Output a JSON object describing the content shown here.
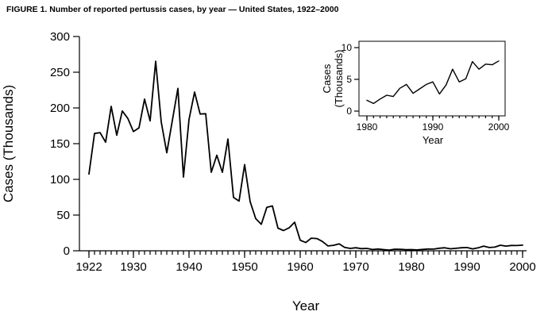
{
  "figure": {
    "title": "FIGURE 1. Number of reported pertussis cases, by year — United States, 1922–2000"
  },
  "chart_data": [
    {
      "type": "line",
      "name": "main",
      "title": "",
      "xlabel": "Year",
      "ylabel": "Cases (Thousands)",
      "xlim": [
        1922,
        2000
      ],
      "ylim": [
        0,
        300
      ],
      "y_ticks": [
        0,
        50,
        100,
        150,
        200,
        250,
        300
      ],
      "x_major_ticks": [
        1922,
        1930,
        1940,
        1950,
        1960,
        1970,
        1980,
        1990,
        2000
      ],
      "x_minor_tick_step": 1,
      "grid": false,
      "legend": false,
      "line_color": "#000000",
      "background": "#ffffff",
      "x": [
        1922,
        1923,
        1924,
        1925,
        1926,
        1927,
        1928,
        1929,
        1930,
        1931,
        1932,
        1933,
        1934,
        1935,
        1936,
        1937,
        1938,
        1939,
        1940,
        1941,
        1942,
        1943,
        1944,
        1945,
        1946,
        1947,
        1948,
        1949,
        1950,
        1951,
        1952,
        1953,
        1954,
        1955,
        1956,
        1957,
        1958,
        1959,
        1960,
        1961,
        1962,
        1963,
        1964,
        1965,
        1966,
        1967,
        1968,
        1969,
        1970,
        1971,
        1972,
        1973,
        1974,
        1975,
        1976,
        1977,
        1978,
        1979,
        1980,
        1981,
        1982,
        1983,
        1984,
        1985,
        1986,
        1987,
        1988,
        1989,
        1990,
        1991,
        1992,
        1993,
        1994,
        1995,
        1996,
        1997,
        1998,
        1999,
        2000
      ],
      "y": [
        107.5,
        164.2,
        165.4,
        152.0,
        202.2,
        161.8,
        195.8,
        185.2,
        166.9,
        172.1,
        212.3,
        181.9,
        265.3,
        180.5,
        137.2,
        182.4,
        227.3,
        103.2,
        183.9,
        222.2,
        191.4,
        191.9,
        109.9,
        133.8,
        109.9,
        156.5,
        74.7,
        69.5,
        120.7,
        68.7,
        45.0,
        37.1,
        60.9,
        62.8,
        31.7,
        28.3,
        32.1,
        40.0,
        14.8,
        11.5,
        17.7,
        17.1,
        13.0,
        6.8,
        7.7,
        9.7,
        4.8,
        3.3,
        4.2,
        3.0,
        3.3,
        1.8,
        2.4,
        1.7,
        1.0,
        2.2,
        2.1,
        1.6,
        1.7,
        1.2,
        1.9,
        2.5,
        2.3,
        3.6,
        4.2,
        2.8,
        3.5,
        4.2,
        4.6,
        2.7,
        4.1,
        6.6,
        4.6,
        5.1,
        7.8,
        6.6,
        7.4,
        7.3,
        7.9
      ]
    },
    {
      "type": "line",
      "name": "inset",
      "title": "",
      "xlabel": "Year",
      "ylabel": "Cases (Thousands)",
      "ylabel_line1": "Cases",
      "ylabel_line2": "(Thousands)",
      "xlim": [
        1980,
        2000
      ],
      "ylim": [
        0,
        10
      ],
      "y_ticks": [
        0,
        5,
        10
      ],
      "x_major_ticks": [
        1980,
        1990,
        2000
      ],
      "x_minor_tick_step": 1,
      "grid": false,
      "legend": false,
      "line_color": "#000000",
      "background": "#ffffff",
      "x": [
        1980,
        1981,
        1982,
        1983,
        1984,
        1985,
        1986,
        1987,
        1988,
        1989,
        1990,
        1991,
        1992,
        1993,
        1994,
        1995,
        1996,
        1997,
        1998,
        1999,
        2000
      ],
      "y": [
        1.7,
        1.2,
        1.9,
        2.5,
        2.3,
        3.6,
        4.2,
        2.8,
        3.5,
        4.2,
        4.6,
        2.7,
        4.1,
        6.6,
        4.6,
        5.1,
        7.8,
        6.6,
        7.4,
        7.3,
        7.9
      ]
    }
  ]
}
